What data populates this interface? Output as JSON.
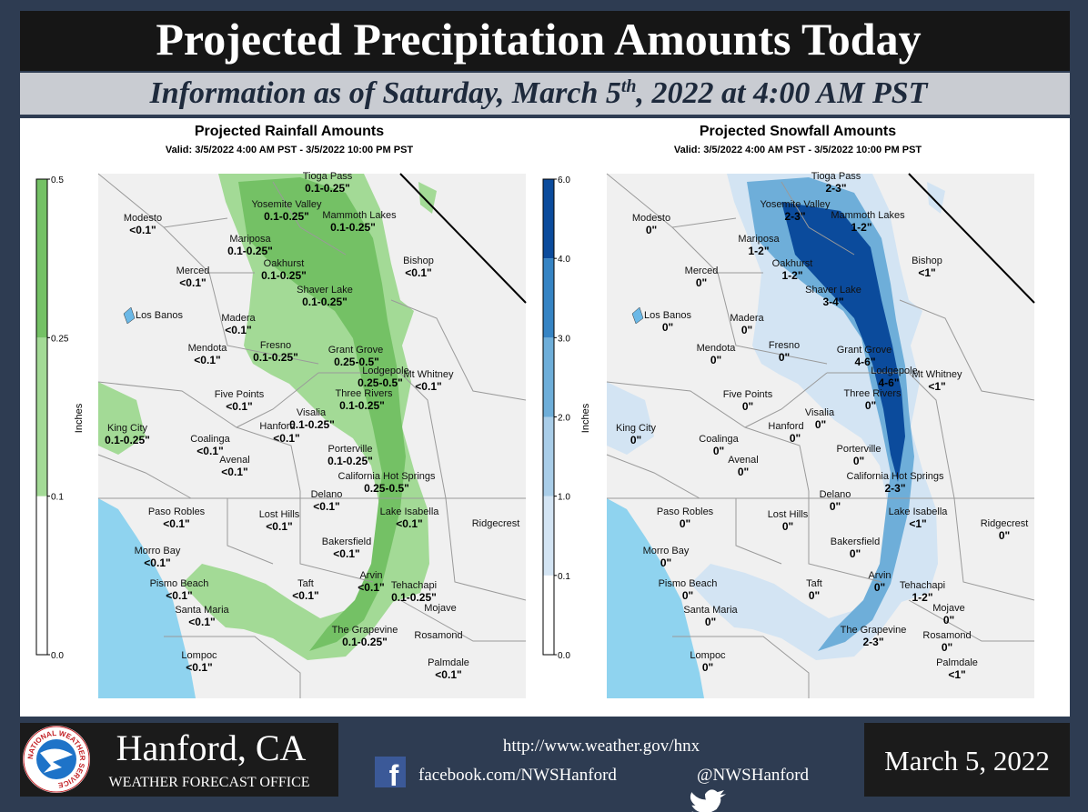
{
  "header": {
    "title": "Projected Precipitation Amounts Today",
    "subtitle_parts": [
      "Information as of Saturday, March 5",
      "th",
      ", 2022 at 4:00 AM PST"
    ]
  },
  "places": [
    "Tioga Pass",
    "Yosemite Valley",
    "Mammoth Lakes",
    "Modesto",
    "Mariposa",
    "Oakhurst",
    "Bishop",
    "Merced",
    "Shaver Lake",
    "Los Banos",
    "Madera",
    "Fresno",
    "Mendota",
    "Grant Grove",
    "Lodgepole",
    "Mt Whitney",
    "Three Rivers",
    "Five Points",
    "Visalia",
    "Hanford",
    "King City",
    "Coalinga",
    "Avenal",
    "Porterville",
    "California Hot Springs",
    "Delano",
    "Paso Robles",
    "Lost Hills",
    "Lake Isabella",
    "Ridgecrest",
    "Bakersfield",
    "Morro Bay",
    "Pismo Beach",
    "Taft",
    "Arvin",
    "Tehachapi",
    "Mojave",
    "Santa Maria",
    "The Grapevine",
    "Rosamond",
    "Lompoc",
    "Palmdale"
  ],
  "rainfall": {
    "title": "Projected Rainfall Amounts",
    "valid": "Valid: 3/5/2022 4:00 AM PST - 3/5/2022 10:00 PM PST",
    "colorbar_label": "Inches",
    "ticks": [
      {
        "value": 0,
        "label": "0.0"
      },
      0.1,
      0.25,
      0.5
    ],
    "colors": [
      "#ffffff",
      "#a3da96",
      "#74c165"
    ],
    "values": [
      "0.1-0.25\"",
      "0.1-0.25\"",
      "0.1-0.25\"",
      "<0.1\"",
      "0.1-0.25\"",
      "0.1-0.25\"",
      "<0.1\"",
      "<0.1\"",
      "0.1-0.25\"",
      null,
      "<0.1\"",
      "0.1-0.25\"",
      "<0.1\"",
      "0.25-0.5\"",
      "0.25-0.5\"",
      "<0.1\"",
      "0.1-0.25\"",
      "<0.1\"",
      "0.1-0.25\"",
      "<0.1\"",
      "0.1-0.25\"",
      "<0.1\"",
      "<0.1\"",
      "0.1-0.25\"",
      "0.25-0.5\"",
      "<0.1\"",
      "<0.1\"",
      "<0.1\"",
      "<0.1\"",
      null,
      "<0.1\"",
      "<0.1\"",
      "<0.1\"",
      "<0.1\"",
      "<0.1\"",
      "0.1-0.25\"",
      null,
      "<0.1\"",
      "0.1-0.25\"",
      null,
      "<0.1\"",
      "<0.1\""
    ]
  },
  "snowfall": {
    "title": "Projected Snowfall Amounts",
    "valid": "Valid: 3/5/2022 4:00 AM PST - 3/5/2022 10:00 PM PST",
    "colorbar_label": "Inches",
    "ticks": [
      {
        "value": 0,
        "label": "0.0"
      },
      0.1,
      {
        "value": 1,
        "label": "1.0"
      },
      {
        "value": 2,
        "label": "2.0"
      },
      {
        "value": 3,
        "label": "3.0"
      },
      {
        "value": 4,
        "label": "4.0"
      },
      {
        "value": 6,
        "label": "6.0"
      }
    ],
    "colors": [
      "#ffffff",
      "#d3e4f3",
      "#a9cde8",
      "#6eaed9",
      "#3684c4",
      "#0b4b9c"
    ],
    "values": [
      "2-3\"",
      "2-3\"",
      "1-2\"",
      "0\"",
      "1-2\"",
      "1-2\"",
      "<1\"",
      "0\"",
      "3-4\"",
      "0\"",
      "0\"",
      "0\"",
      "0\"",
      "4-6\"",
      "4-6\"",
      "<1\"",
      "0\"",
      "0\"",
      "0\"",
      "0\"",
      "0\"",
      "0\"",
      "0\"",
      "0\"",
      "2-3\"",
      "0\"",
      "0\"",
      "0\"",
      "<1\"",
      "0\"",
      "0\"",
      "0\"",
      "0\"",
      "0\"",
      "0\"",
      "1-2\"",
      "0\"",
      "0\"",
      "2-3\"",
      "0\"",
      "0\"",
      "<1\""
    ]
  },
  "footer": {
    "office": "Hanford, CA",
    "office_type": "WEATHER FORECAST OFFICE",
    "logo_text": "NATIONAL WEATHER SERVICE",
    "url": "http://www.weather.gov/hnx",
    "facebook": "facebook.com/NWSHanford",
    "twitter": "@NWSHanford",
    "date": "March 5, 2022"
  }
}
